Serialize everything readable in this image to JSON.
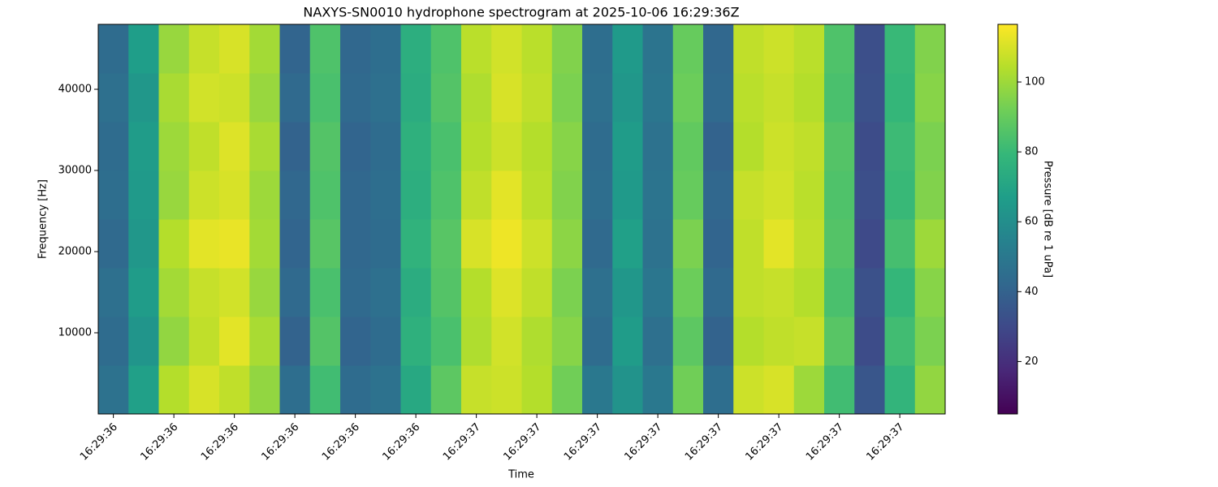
{
  "chart_data": {
    "type": "heatmap",
    "title": "NAXYS-SN0010 hydrophone spectrogram at 2025-10-06 16:29:36Z",
    "xlabel": "Time",
    "ylabel": "Frequency [Hz]",
    "colorbar_label": "Pressure [dB re 1 uPa]",
    "colormap": "viridis",
    "x": [
      36.4,
      36.45,
      36.5,
      36.55,
      36.6,
      36.65,
      36.7,
      36.75,
      36.8,
      36.85,
      36.9,
      36.95,
      37.0,
      37.05,
      37.1,
      37.15,
      37.2,
      37.25,
      37.3,
      37.35,
      37.4,
      37.45,
      37.5,
      37.55,
      37.6,
      37.65,
      37.7,
      37.75
    ],
    "y": [
      3000,
      9000,
      15000,
      21000,
      27000,
      33000,
      39000,
      45000
    ],
    "z": [
      [
        47,
        68,
        104,
        110,
        106,
        98,
        45,
        82,
        44,
        47,
        72,
        88,
        107,
        108,
        104,
        92,
        50,
        62,
        50,
        92,
        45,
        108,
        110,
        100,
        82,
        35,
        78,
        98
      ],
      [
        44,
        63,
        98,
        106,
        112,
        102,
        40,
        86,
        41,
        44,
        76,
        84,
        103,
        109,
        103,
        96,
        44,
        66,
        46,
        88,
        40,
        104,
        106,
        107,
        87,
        31,
        82,
        94
      ],
      [
        46,
        66,
        101,
        107,
        109,
        99,
        43,
        84,
        43,
        46,
        74,
        86,
        104,
        111,
        106,
        94,
        46,
        64,
        49,
        91,
        43,
        106,
        107,
        104,
        84,
        33,
        79,
        96
      ],
      [
        43,
        64,
        104,
        112,
        113,
        101,
        41,
        87,
        42,
        44,
        77,
        87,
        110,
        114,
        108,
        97,
        43,
        68,
        47,
        94,
        41,
        106,
        112,
        106,
        86,
        30,
        83,
        100
      ],
      [
        45,
        65,
        99,
        108,
        110,
        100,
        42,
        85,
        42,
        45,
        75,
        85,
        106,
        112,
        105,
        95,
        45,
        65,
        48,
        90,
        42,
        107,
        109,
        105,
        85,
        32,
        80,
        95
      ],
      [
        44,
        66,
        100,
        106,
        111,
        102,
        40,
        86,
        41,
        44,
        76,
        84,
        104,
        108,
        104,
        96,
        44,
        66,
        47,
        89,
        40,
        104,
        108,
        106,
        86,
        31,
        81,
        94
      ],
      [
        46,
        64,
        102,
        109,
        108,
        99,
        43,
        84,
        43,
        46,
        74,
        86,
        103,
        110,
        106,
        94,
        46,
        64,
        49,
        91,
        43,
        105,
        107,
        104,
        84,
        33,
        79,
        96
      ],
      [
        44,
        67,
        99,
        107,
        110,
        101,
        41,
        85,
        42,
        45,
        75,
        85,
        105,
        109,
        105,
        95,
        45,
        65,
        48,
        90,
        42,
        106,
        108,
        105,
        85,
        32,
        80,
        95
      ]
    ],
    "xlim": [
      36.375,
      37.775
    ],
    "ylim": [
      0,
      48000
    ],
    "xticks": [
      {
        "value": 36.4,
        "label": "16:29:36"
      },
      {
        "value": 36.5,
        "label": "16:29:36"
      },
      {
        "value": 36.6,
        "label": "16:29:36"
      },
      {
        "value": 36.7,
        "label": "16:29:36"
      },
      {
        "value": 36.8,
        "label": "16:29:36"
      },
      {
        "value": 36.9,
        "label": "16:29:36"
      },
      {
        "value": 37.0,
        "label": "16:29:37"
      },
      {
        "value": 37.1,
        "label": "16:29:37"
      },
      {
        "value": 37.2,
        "label": "16:29:37"
      },
      {
        "value": 37.3,
        "label": "16:29:37"
      },
      {
        "value": 37.4,
        "label": "16:29:37"
      },
      {
        "value": 37.5,
        "label": "16:29:37"
      },
      {
        "value": 37.6,
        "label": "16:29:37"
      },
      {
        "value": 37.7,
        "label": "16:29:37"
      }
    ],
    "yticks": [
      10000,
      20000,
      30000,
      40000
    ],
    "clim": [
      5,
      116.5
    ],
    "cticks": [
      20,
      40,
      60,
      80,
      100
    ]
  }
}
